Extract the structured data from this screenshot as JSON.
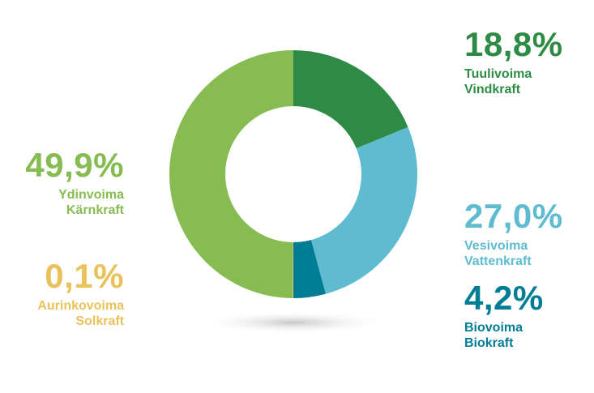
{
  "chart_data": {
    "type": "pie",
    "slices": [
      {
        "percent_label": "18,8%",
        "value": 18.8,
        "name_fi": "Tuulivoima",
        "name_sv": "Vindkraft",
        "color": "#2E8B45"
      },
      {
        "percent_label": "27,0%",
        "value": 27.0,
        "name_fi": "Vesivoima",
        "name_sv": "Vattenkraft",
        "color": "#5FBCD0"
      },
      {
        "percent_label": "4,2%",
        "value": 4.2,
        "name_fi": "Biovoima",
        "name_sv": "Biokraft",
        "color": "#007D94"
      },
      {
        "percent_label": "0,1%",
        "value": 0.1,
        "name_fi": "Aurinkovoima",
        "name_sv": "Solkraft",
        "color": "#E9C25A"
      },
      {
        "percent_label": "49,9%",
        "value": 49.9,
        "name_fi": "Ydinvoima",
        "name_sv": "Kärnkraft",
        "color": "#86BC52"
      }
    ]
  }
}
